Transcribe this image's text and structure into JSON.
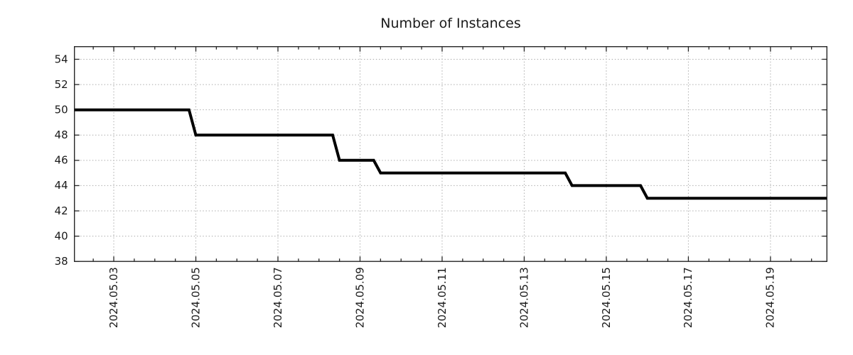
{
  "chart_data": {
    "type": "line",
    "line_style": "step",
    "title": "Number of Instances",
    "legend": {
      "show": false
    },
    "grid": {
      "show": true,
      "style": "dotted",
      "on": "major-both"
    },
    "colors": {
      "line": "#000000",
      "grid": "#a8a8a8",
      "axis": "#262626",
      "text": "#1a1a1a",
      "background": "#ffffff"
    },
    "x_axis": {
      "type": "time",
      "range": [
        "2024-05-02 01:00",
        "2024-05-20 09:00"
      ],
      "major_ticks": [
        "2024-05-03",
        "2024-05-05",
        "2024-05-07",
        "2024-05-09",
        "2024-05-11",
        "2024-05-13",
        "2024-05-15",
        "2024-05-17",
        "2024-05-19"
      ],
      "tick_labels": [
        "2024.05.03",
        "2024.05.05",
        "2024.05.07",
        "2024.05.09",
        "2024.05.11",
        "2024.05.13",
        "2024.05.15",
        "2024.05.17",
        "2024.05.19"
      ],
      "minor_tick_interval_days": 0.5,
      "label_rotation_deg": -90
    },
    "y_axis": {
      "range": [
        38,
        55
      ],
      "major_ticks": [
        38,
        40,
        42,
        44,
        46,
        48,
        50,
        52,
        54
      ],
      "tick_labels": [
        "38",
        "40",
        "42",
        "44",
        "46",
        "48",
        "50",
        "52",
        "54"
      ]
    },
    "series": [
      {
        "name": "instances",
        "color": "#000000",
        "width": 4,
        "points": [
          [
            "2024-05-02 01:00",
            50
          ],
          [
            "2024-05-04 20:00",
            50
          ],
          [
            "2024-05-05 00:00",
            48
          ],
          [
            "2024-05-08 08:00",
            48
          ],
          [
            "2024-05-08 12:00",
            46
          ],
          [
            "2024-05-09 08:00",
            46
          ],
          [
            "2024-05-09 12:00",
            45
          ],
          [
            "2024-05-14 00:00",
            45
          ],
          [
            "2024-05-14 04:00",
            44
          ],
          [
            "2024-05-15 20:00",
            44
          ],
          [
            "2024-05-16 00:00",
            43
          ],
          [
            "2024-05-20 09:00",
            43
          ]
        ]
      }
    ]
  }
}
